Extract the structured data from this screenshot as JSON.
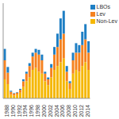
{
  "chart_data": {
    "type": "bar",
    "stacked": true,
    "legend": "top-right",
    "tick_labels": "x",
    "grid": false,
    "categories": [
      "1988",
      null,
      "1990",
      null,
      "1992",
      null,
      "1994",
      null,
      "1996",
      null,
      "1998",
      null,
      "2000",
      null,
      "2002",
      null,
      "2004",
      null,
      "2006",
      null,
      "2008",
      null,
      "2010",
      null,
      "2012",
      null,
      "2014",
      null
    ],
    "ylim": [
      0,
      100
    ],
    "series": [
      {
        "name": "Non-Lev",
        "color": "#f5b700",
        "values": [
          20,
          15,
          4,
          3,
          4,
          6,
          12,
          18,
          22,
          30,
          32,
          28,
          26,
          18,
          14,
          22,
          30,
          34,
          38,
          42,
          18,
          10,
          26,
          30,
          28,
          34,
          38,
          30
        ]
      },
      {
        "name": "Lev",
        "color": "#f58220",
        "values": [
          20,
          12,
          3,
          2,
          2,
          3,
          6,
          8,
          12,
          14,
          16,
          18,
          14,
          8,
          6,
          10,
          16,
          20,
          24,
          26,
          10,
          6,
          14,
          18,
          20,
          22,
          24,
          18
        ]
      },
      {
        "name": "LBOs",
        "color": "#1f7fc4",
        "values": [
          12,
          6,
          1,
          0.5,
          0.5,
          1,
          2,
          2,
          3,
          4,
          4,
          5,
          6,
          2,
          2,
          4,
          8,
          14,
          22,
          24,
          6,
          2,
          8,
          10,
          8,
          14,
          16,
          12
        ]
      }
    ]
  }
}
